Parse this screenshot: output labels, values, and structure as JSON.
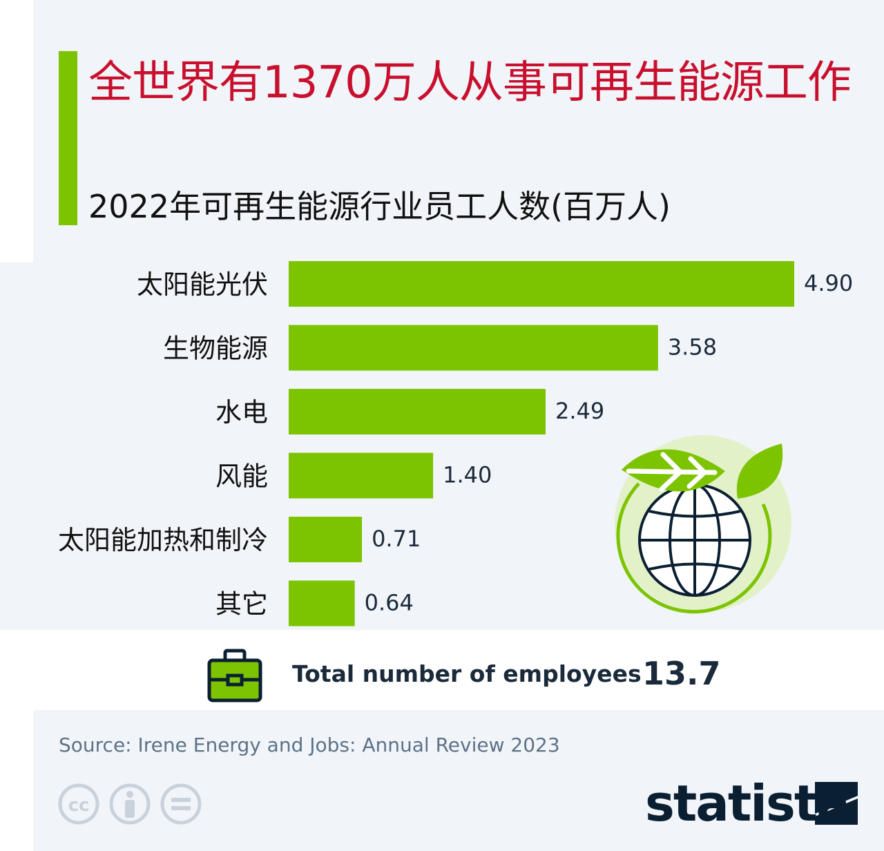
{
  "header": {
    "title": "全世界有1370万人从事可再生能源工作",
    "subtitle": "2022年可再生能源行业员工人数(百万人)"
  },
  "colors": {
    "accent": "#7cc400",
    "title": "#c8102e",
    "text_dark": "#1b2a3b",
    "background": "#f1f4f8"
  },
  "chart_data": {
    "type": "bar",
    "orientation": "horizontal",
    "categories": [
      "太阳能光伏",
      "生物能源",
      "水电",
      "风能",
      "太阳能加热和制冷",
      "其它"
    ],
    "values": [
      4.9,
      3.58,
      2.49,
      1.4,
      0.71,
      0.64
    ],
    "value_labels": [
      "4.90",
      "3.58",
      "2.49",
      "1.40",
      "0.71",
      "0.64"
    ],
    "xlim": [
      0,
      4.9
    ],
    "grid": false,
    "bar_color": "#7cc400"
  },
  "total": {
    "label": "Total number of employees",
    "value": "13.7"
  },
  "footer": {
    "source": "Source: Irene Energy and Jobs: Annual Review 2023",
    "brand": "statista",
    "icons": [
      "creative-commons-icon",
      "attribution-icon",
      "no-derivatives-icon"
    ]
  },
  "illustration": {
    "icon": "globe-with-leaves-icon"
  }
}
